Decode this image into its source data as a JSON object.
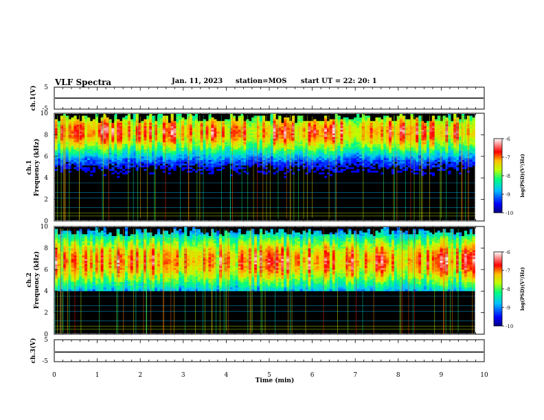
{
  "header": {
    "title": "VLF Spectra",
    "date": "Jan. 11, 2023",
    "station": "station=MOS",
    "start": "start UT = 22: 20: 1"
  },
  "chart_data": {
    "type": "heatmap",
    "xlabel": "Time (min)",
    "xlim": [
      0,
      10
    ],
    "xticks": [
      "0",
      "1",
      "2",
      "3",
      "4",
      "5",
      "6",
      "7",
      "8",
      "9",
      "10"
    ],
    "panels": [
      {
        "name": "waveform-ch1",
        "ylabel": "ch.1(V)",
        "ylim": [
          -5,
          5
        ],
        "yticks": [
          "5",
          "-5"
        ],
        "level": 0
      },
      {
        "name": "spectrogram-ch1",
        "ylabel": "ch.1 Frequency (kHz)",
        "ylim": [
          0,
          10
        ],
        "yticks": [
          "0",
          "2",
          "4",
          "6",
          "8",
          "10"
        ],
        "band_center_khz": 8.3,
        "band_width_khz": 1.4,
        "colorbar": {
          "ticks": [
            "-6",
            "-7",
            "-8",
            "-9",
            "-10"
          ],
          "label": "log(PSD)(V²/Hz)",
          "range": [
            -10,
            -6
          ]
        }
      },
      {
        "name": "spectrogram-ch2",
        "ylabel": "ch.2 Frequency (kHz)",
        "ylim": [
          0,
          10
        ],
        "yticks": [
          "0",
          "2",
          "4",
          "6",
          "8",
          "10"
        ],
        "band_center_khz": 6.8,
        "band_width_khz": 1.7,
        "colorbar": {
          "ticks": [
            "-6",
            "-7",
            "-8",
            "-9",
            "-10"
          ],
          "label": "log(PSD)(V²/Hz)",
          "range": [
            -10,
            -6
          ]
        }
      },
      {
        "name": "waveform-ch3",
        "ylabel": "ch.3(V)",
        "ylim": [
          -5,
          5
        ],
        "yticks": [
          "5",
          "-5"
        ],
        "level": 0
      }
    ],
    "colormap": [
      "#000080",
      "#0000ff",
      "#00c0ff",
      "#00ff80",
      "#c0ff00",
      "#ffc000",
      "#ff0000",
      "#ffffff"
    ]
  }
}
